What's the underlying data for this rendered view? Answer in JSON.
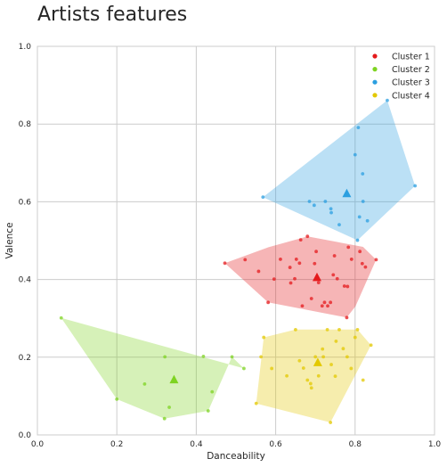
{
  "chart_data": {
    "type": "scatter",
    "title": "Artists features",
    "xlabel": "Danceability",
    "ylabel": "Valence",
    "xlim": [
      0,
      1
    ],
    "ylim": [
      0,
      1
    ],
    "xticks": [
      "0.0",
      "0.2",
      "0.4",
      "0.6",
      "0.8",
      "1.0"
    ],
    "yticks": [
      "0.0",
      "0.2",
      "0.4",
      "0.6",
      "0.8",
      "1.0"
    ],
    "grid": true,
    "legend_position": "top-right",
    "series": [
      {
        "name": "Cluster 1",
        "color": "#e41a1c",
        "centroid": [
          0.704,
          0.405
        ],
        "hull": [
          [
            0.472,
            0.442
          ],
          [
            0.582,
            0.483
          ],
          [
            0.68,
            0.511
          ],
          [
            0.82,
            0.484
          ],
          [
            0.853,
            0.451
          ],
          [
            0.801,
            0.331
          ],
          [
            0.779,
            0.302
          ],
          [
            0.581,
            0.341
          ]
        ],
        "points": [
          [
            0.472,
            0.442
          ],
          [
            0.523,
            0.451
          ],
          [
            0.557,
            0.421
          ],
          [
            0.581,
            0.341
          ],
          [
            0.596,
            0.401
          ],
          [
            0.612,
            0.452
          ],
          [
            0.636,
            0.431
          ],
          [
            0.638,
            0.391
          ],
          [
            0.648,
            0.402
          ],
          [
            0.652,
            0.452
          ],
          [
            0.66,
            0.442
          ],
          [
            0.663,
            0.502
          ],
          [
            0.667,
            0.332
          ],
          [
            0.68,
            0.511
          ],
          [
            0.69,
            0.351
          ],
          [
            0.698,
            0.441
          ],
          [
            0.702,
            0.472
          ],
          [
            0.708,
            0.392
          ],
          [
            0.717,
            0.332
          ],
          [
            0.723,
            0.341
          ],
          [
            0.731,
            0.332
          ],
          [
            0.738,
            0.341
          ],
          [
            0.745,
            0.412
          ],
          [
            0.748,
            0.461
          ],
          [
            0.755,
            0.402
          ],
          [
            0.773,
            0.383
          ],
          [
            0.779,
            0.302
          ],
          [
            0.781,
            0.382
          ],
          [
            0.783,
            0.483
          ],
          [
            0.791,
            0.452
          ],
          [
            0.812,
            0.472
          ],
          [
            0.818,
            0.441
          ],
          [
            0.826,
            0.432
          ],
          [
            0.853,
            0.451
          ]
        ]
      },
      {
        "name": "Cluster 2",
        "color": "#7ed321",
        "centroid": [
          0.344,
          0.142
        ],
        "hull": [
          [
            0.06,
            0.301
          ],
          [
            0.52,
            0.171
          ],
          [
            0.49,
            0.201
          ],
          [
            0.43,
            0.062
          ],
          [
            0.32,
            0.042
          ],
          [
            0.2,
            0.092
          ]
        ],
        "points": [
          [
            0.06,
            0.301
          ],
          [
            0.2,
            0.092
          ],
          [
            0.27,
            0.131
          ],
          [
            0.32,
            0.042
          ],
          [
            0.321,
            0.201
          ],
          [
            0.332,
            0.071
          ],
          [
            0.418,
            0.202
          ],
          [
            0.43,
            0.062
          ],
          [
            0.44,
            0.111
          ],
          [
            0.49,
            0.201
          ],
          [
            0.52,
            0.171
          ]
        ]
      },
      {
        "name": "Cluster 3",
        "color": "#2b9fe0",
        "centroid": [
          0.779,
          0.621
        ],
        "hull": [
          [
            0.568,
            0.612
          ],
          [
            0.881,
            0.861
          ],
          [
            0.951,
            0.641
          ],
          [
            0.806,
            0.501
          ]
        ],
        "points": [
          [
            0.568,
            0.612
          ],
          [
            0.685,
            0.601
          ],
          [
            0.697,
            0.591
          ],
          [
            0.725,
            0.601
          ],
          [
            0.739,
            0.582
          ],
          [
            0.74,
            0.572
          ],
          [
            0.76,
            0.541
          ],
          [
            0.8,
            0.721
          ],
          [
            0.806,
            0.501
          ],
          [
            0.808,
            0.791
          ],
          [
            0.811,
            0.561
          ],
          [
            0.819,
            0.672
          ],
          [
            0.82,
            0.601
          ],
          [
            0.831,
            0.551
          ],
          [
            0.881,
            0.861
          ],
          [
            0.951,
            0.641
          ]
        ]
      },
      {
        "name": "Cluster 4",
        "color": "#e3c800",
        "centroid": [
          0.706,
          0.186
        ],
        "hull": [
          [
            0.551,
            0.081
          ],
          [
            0.57,
            0.251
          ],
          [
            0.65,
            0.271
          ],
          [
            0.806,
            0.271
          ],
          [
            0.84,
            0.231
          ],
          [
            0.738,
            0.032
          ]
        ],
        "points": [
          [
            0.551,
            0.081
          ],
          [
            0.563,
            0.201
          ],
          [
            0.57,
            0.251
          ],
          [
            0.59,
            0.171
          ],
          [
            0.628,
            0.152
          ],
          [
            0.65,
            0.271
          ],
          [
            0.66,
            0.191
          ],
          [
            0.67,
            0.172
          ],
          [
            0.68,
            0.141
          ],
          [
            0.688,
            0.132
          ],
          [
            0.69,
            0.121
          ],
          [
            0.7,
            0.201
          ],
          [
            0.708,
            0.152
          ],
          [
            0.718,
            0.221
          ],
          [
            0.72,
            0.201
          ],
          [
            0.73,
            0.271
          ],
          [
            0.738,
            0.032
          ],
          [
            0.74,
            0.181
          ],
          [
            0.75,
            0.151
          ],
          [
            0.752,
            0.241
          ],
          [
            0.76,
            0.271
          ],
          [
            0.77,
            0.222
          ],
          [
            0.78,
            0.201
          ],
          [
            0.79,
            0.171
          ],
          [
            0.8,
            0.251
          ],
          [
            0.806,
            0.271
          ],
          [
            0.82,
            0.141
          ],
          [
            0.84,
            0.231
          ]
        ]
      }
    ]
  }
}
